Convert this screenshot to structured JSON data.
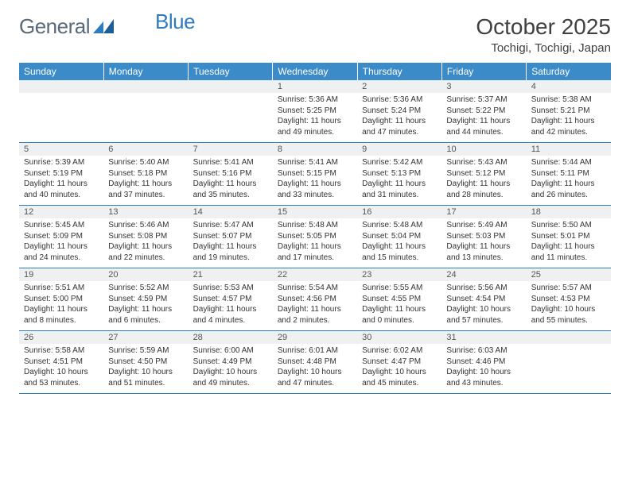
{
  "brand": {
    "part1": "General",
    "part2": "Blue"
  },
  "header": {
    "month_title": "October 2025",
    "location": "Tochigi, Tochigi, Japan"
  },
  "colors": {
    "header_bg": "#3b8bc8",
    "rule": "#2f7bbf",
    "daynum_bg": "#eef0f2",
    "text": "#333333",
    "logo_gray": "#5a6a78",
    "logo_blue": "#2f7bbf"
  },
  "weekdays": [
    "Sunday",
    "Monday",
    "Tuesday",
    "Wednesday",
    "Thursday",
    "Friday",
    "Saturday"
  ],
  "weeks": [
    [
      {
        "num": "",
        "sunrise": "",
        "sunset": "",
        "daylight": ""
      },
      {
        "num": "",
        "sunrise": "",
        "sunset": "",
        "daylight": ""
      },
      {
        "num": "",
        "sunrise": "",
        "sunset": "",
        "daylight": ""
      },
      {
        "num": "1",
        "sunrise": "Sunrise: 5:36 AM",
        "sunset": "Sunset: 5:25 PM",
        "daylight": "Daylight: 11 hours and 49 minutes."
      },
      {
        "num": "2",
        "sunrise": "Sunrise: 5:36 AM",
        "sunset": "Sunset: 5:24 PM",
        "daylight": "Daylight: 11 hours and 47 minutes."
      },
      {
        "num": "3",
        "sunrise": "Sunrise: 5:37 AM",
        "sunset": "Sunset: 5:22 PM",
        "daylight": "Daylight: 11 hours and 44 minutes."
      },
      {
        "num": "4",
        "sunrise": "Sunrise: 5:38 AM",
        "sunset": "Sunset: 5:21 PM",
        "daylight": "Daylight: 11 hours and 42 minutes."
      }
    ],
    [
      {
        "num": "5",
        "sunrise": "Sunrise: 5:39 AM",
        "sunset": "Sunset: 5:19 PM",
        "daylight": "Daylight: 11 hours and 40 minutes."
      },
      {
        "num": "6",
        "sunrise": "Sunrise: 5:40 AM",
        "sunset": "Sunset: 5:18 PM",
        "daylight": "Daylight: 11 hours and 37 minutes."
      },
      {
        "num": "7",
        "sunrise": "Sunrise: 5:41 AM",
        "sunset": "Sunset: 5:16 PM",
        "daylight": "Daylight: 11 hours and 35 minutes."
      },
      {
        "num": "8",
        "sunrise": "Sunrise: 5:41 AM",
        "sunset": "Sunset: 5:15 PM",
        "daylight": "Daylight: 11 hours and 33 minutes."
      },
      {
        "num": "9",
        "sunrise": "Sunrise: 5:42 AM",
        "sunset": "Sunset: 5:13 PM",
        "daylight": "Daylight: 11 hours and 31 minutes."
      },
      {
        "num": "10",
        "sunrise": "Sunrise: 5:43 AM",
        "sunset": "Sunset: 5:12 PM",
        "daylight": "Daylight: 11 hours and 28 minutes."
      },
      {
        "num": "11",
        "sunrise": "Sunrise: 5:44 AM",
        "sunset": "Sunset: 5:11 PM",
        "daylight": "Daylight: 11 hours and 26 minutes."
      }
    ],
    [
      {
        "num": "12",
        "sunrise": "Sunrise: 5:45 AM",
        "sunset": "Sunset: 5:09 PM",
        "daylight": "Daylight: 11 hours and 24 minutes."
      },
      {
        "num": "13",
        "sunrise": "Sunrise: 5:46 AM",
        "sunset": "Sunset: 5:08 PM",
        "daylight": "Daylight: 11 hours and 22 minutes."
      },
      {
        "num": "14",
        "sunrise": "Sunrise: 5:47 AM",
        "sunset": "Sunset: 5:07 PM",
        "daylight": "Daylight: 11 hours and 19 minutes."
      },
      {
        "num": "15",
        "sunrise": "Sunrise: 5:48 AM",
        "sunset": "Sunset: 5:05 PM",
        "daylight": "Daylight: 11 hours and 17 minutes."
      },
      {
        "num": "16",
        "sunrise": "Sunrise: 5:48 AM",
        "sunset": "Sunset: 5:04 PM",
        "daylight": "Daylight: 11 hours and 15 minutes."
      },
      {
        "num": "17",
        "sunrise": "Sunrise: 5:49 AM",
        "sunset": "Sunset: 5:03 PM",
        "daylight": "Daylight: 11 hours and 13 minutes."
      },
      {
        "num": "18",
        "sunrise": "Sunrise: 5:50 AM",
        "sunset": "Sunset: 5:01 PM",
        "daylight": "Daylight: 11 hours and 11 minutes."
      }
    ],
    [
      {
        "num": "19",
        "sunrise": "Sunrise: 5:51 AM",
        "sunset": "Sunset: 5:00 PM",
        "daylight": "Daylight: 11 hours and 8 minutes."
      },
      {
        "num": "20",
        "sunrise": "Sunrise: 5:52 AM",
        "sunset": "Sunset: 4:59 PM",
        "daylight": "Daylight: 11 hours and 6 minutes."
      },
      {
        "num": "21",
        "sunrise": "Sunrise: 5:53 AM",
        "sunset": "Sunset: 4:57 PM",
        "daylight": "Daylight: 11 hours and 4 minutes."
      },
      {
        "num": "22",
        "sunrise": "Sunrise: 5:54 AM",
        "sunset": "Sunset: 4:56 PM",
        "daylight": "Daylight: 11 hours and 2 minutes."
      },
      {
        "num": "23",
        "sunrise": "Sunrise: 5:55 AM",
        "sunset": "Sunset: 4:55 PM",
        "daylight": "Daylight: 11 hours and 0 minutes."
      },
      {
        "num": "24",
        "sunrise": "Sunrise: 5:56 AM",
        "sunset": "Sunset: 4:54 PM",
        "daylight": "Daylight: 10 hours and 57 minutes."
      },
      {
        "num": "25",
        "sunrise": "Sunrise: 5:57 AM",
        "sunset": "Sunset: 4:53 PM",
        "daylight": "Daylight: 10 hours and 55 minutes."
      }
    ],
    [
      {
        "num": "26",
        "sunrise": "Sunrise: 5:58 AM",
        "sunset": "Sunset: 4:51 PM",
        "daylight": "Daylight: 10 hours and 53 minutes."
      },
      {
        "num": "27",
        "sunrise": "Sunrise: 5:59 AM",
        "sunset": "Sunset: 4:50 PM",
        "daylight": "Daylight: 10 hours and 51 minutes."
      },
      {
        "num": "28",
        "sunrise": "Sunrise: 6:00 AM",
        "sunset": "Sunset: 4:49 PM",
        "daylight": "Daylight: 10 hours and 49 minutes."
      },
      {
        "num": "29",
        "sunrise": "Sunrise: 6:01 AM",
        "sunset": "Sunset: 4:48 PM",
        "daylight": "Daylight: 10 hours and 47 minutes."
      },
      {
        "num": "30",
        "sunrise": "Sunrise: 6:02 AM",
        "sunset": "Sunset: 4:47 PM",
        "daylight": "Daylight: 10 hours and 45 minutes."
      },
      {
        "num": "31",
        "sunrise": "Sunrise: 6:03 AM",
        "sunset": "Sunset: 4:46 PM",
        "daylight": "Daylight: 10 hours and 43 minutes."
      },
      {
        "num": "",
        "sunrise": "",
        "sunset": "",
        "daylight": ""
      }
    ]
  ]
}
